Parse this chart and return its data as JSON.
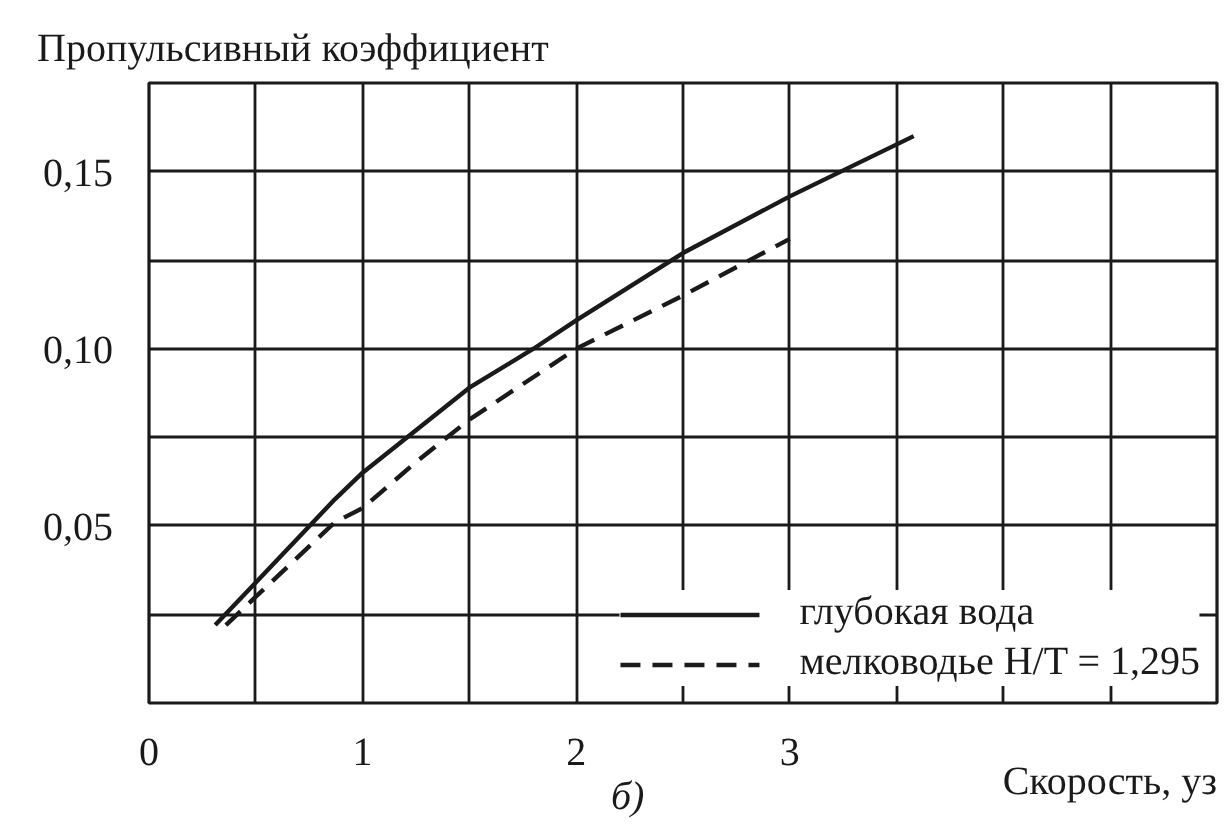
{
  "chart_data": {
    "type": "line",
    "ylabel": "Пропульсивный коэффициент",
    "xlabel": "Скорость, уз",
    "annotations": [
      "б)"
    ],
    "xlim": [
      0,
      5
    ],
    "ylim": [
      0,
      0.175
    ],
    "xticks": [
      0,
      {
        "value": 0.5,
        "label": null
      },
      1,
      {
        "value": 1.5,
        "label": null
      },
      2,
      {
        "value": 2.5,
        "label": null
      },
      3,
      {
        "value": 3.5,
        "label": null
      },
      {
        "value": 4,
        "label": null
      },
      {
        "value": 4.5,
        "label": null
      }
    ],
    "yticks": [
      {
        "value": 0.025,
        "label": null
      },
      {
        "value": 0.05,
        "label": "0,05"
      },
      {
        "value": 0.075,
        "label": null
      },
      {
        "value": 0.1,
        "label": "0,10"
      },
      {
        "value": 0.125,
        "label": null
      },
      {
        "value": 0.15,
        "label": "0,15"
      }
    ],
    "grid": true,
    "legend": "bottom right",
    "marker": "none",
    "series": [
      {
        "name": "глубокая вода",
        "color": "#1a1a1a",
        "line_style": "solid",
        "x": [
          0.31,
          0.5,
          0.87,
          1.0,
          1.25,
          1.5,
          1.8,
          2.0,
          2.5,
          3.0,
          3.58
        ],
        "values": [
          0.022,
          0.034,
          0.0575,
          0.065,
          0.077,
          0.089,
          0.1,
          0.108,
          0.127,
          0.143,
          0.16
        ]
      },
      {
        "name": "мелководье H/T = 1,295",
        "color": "#1a1a1a",
        "line_style": "dashed",
        "x": [
          0.36,
          0.5,
          0.87,
          1.0,
          1.25,
          1.5,
          2.0,
          2.5,
          3.0
        ],
        "values": [
          0.022,
          0.03,
          0.051,
          0.055,
          0.068,
          0.08,
          0.1,
          0.115,
          0.131
        ]
      }
    ]
  }
}
